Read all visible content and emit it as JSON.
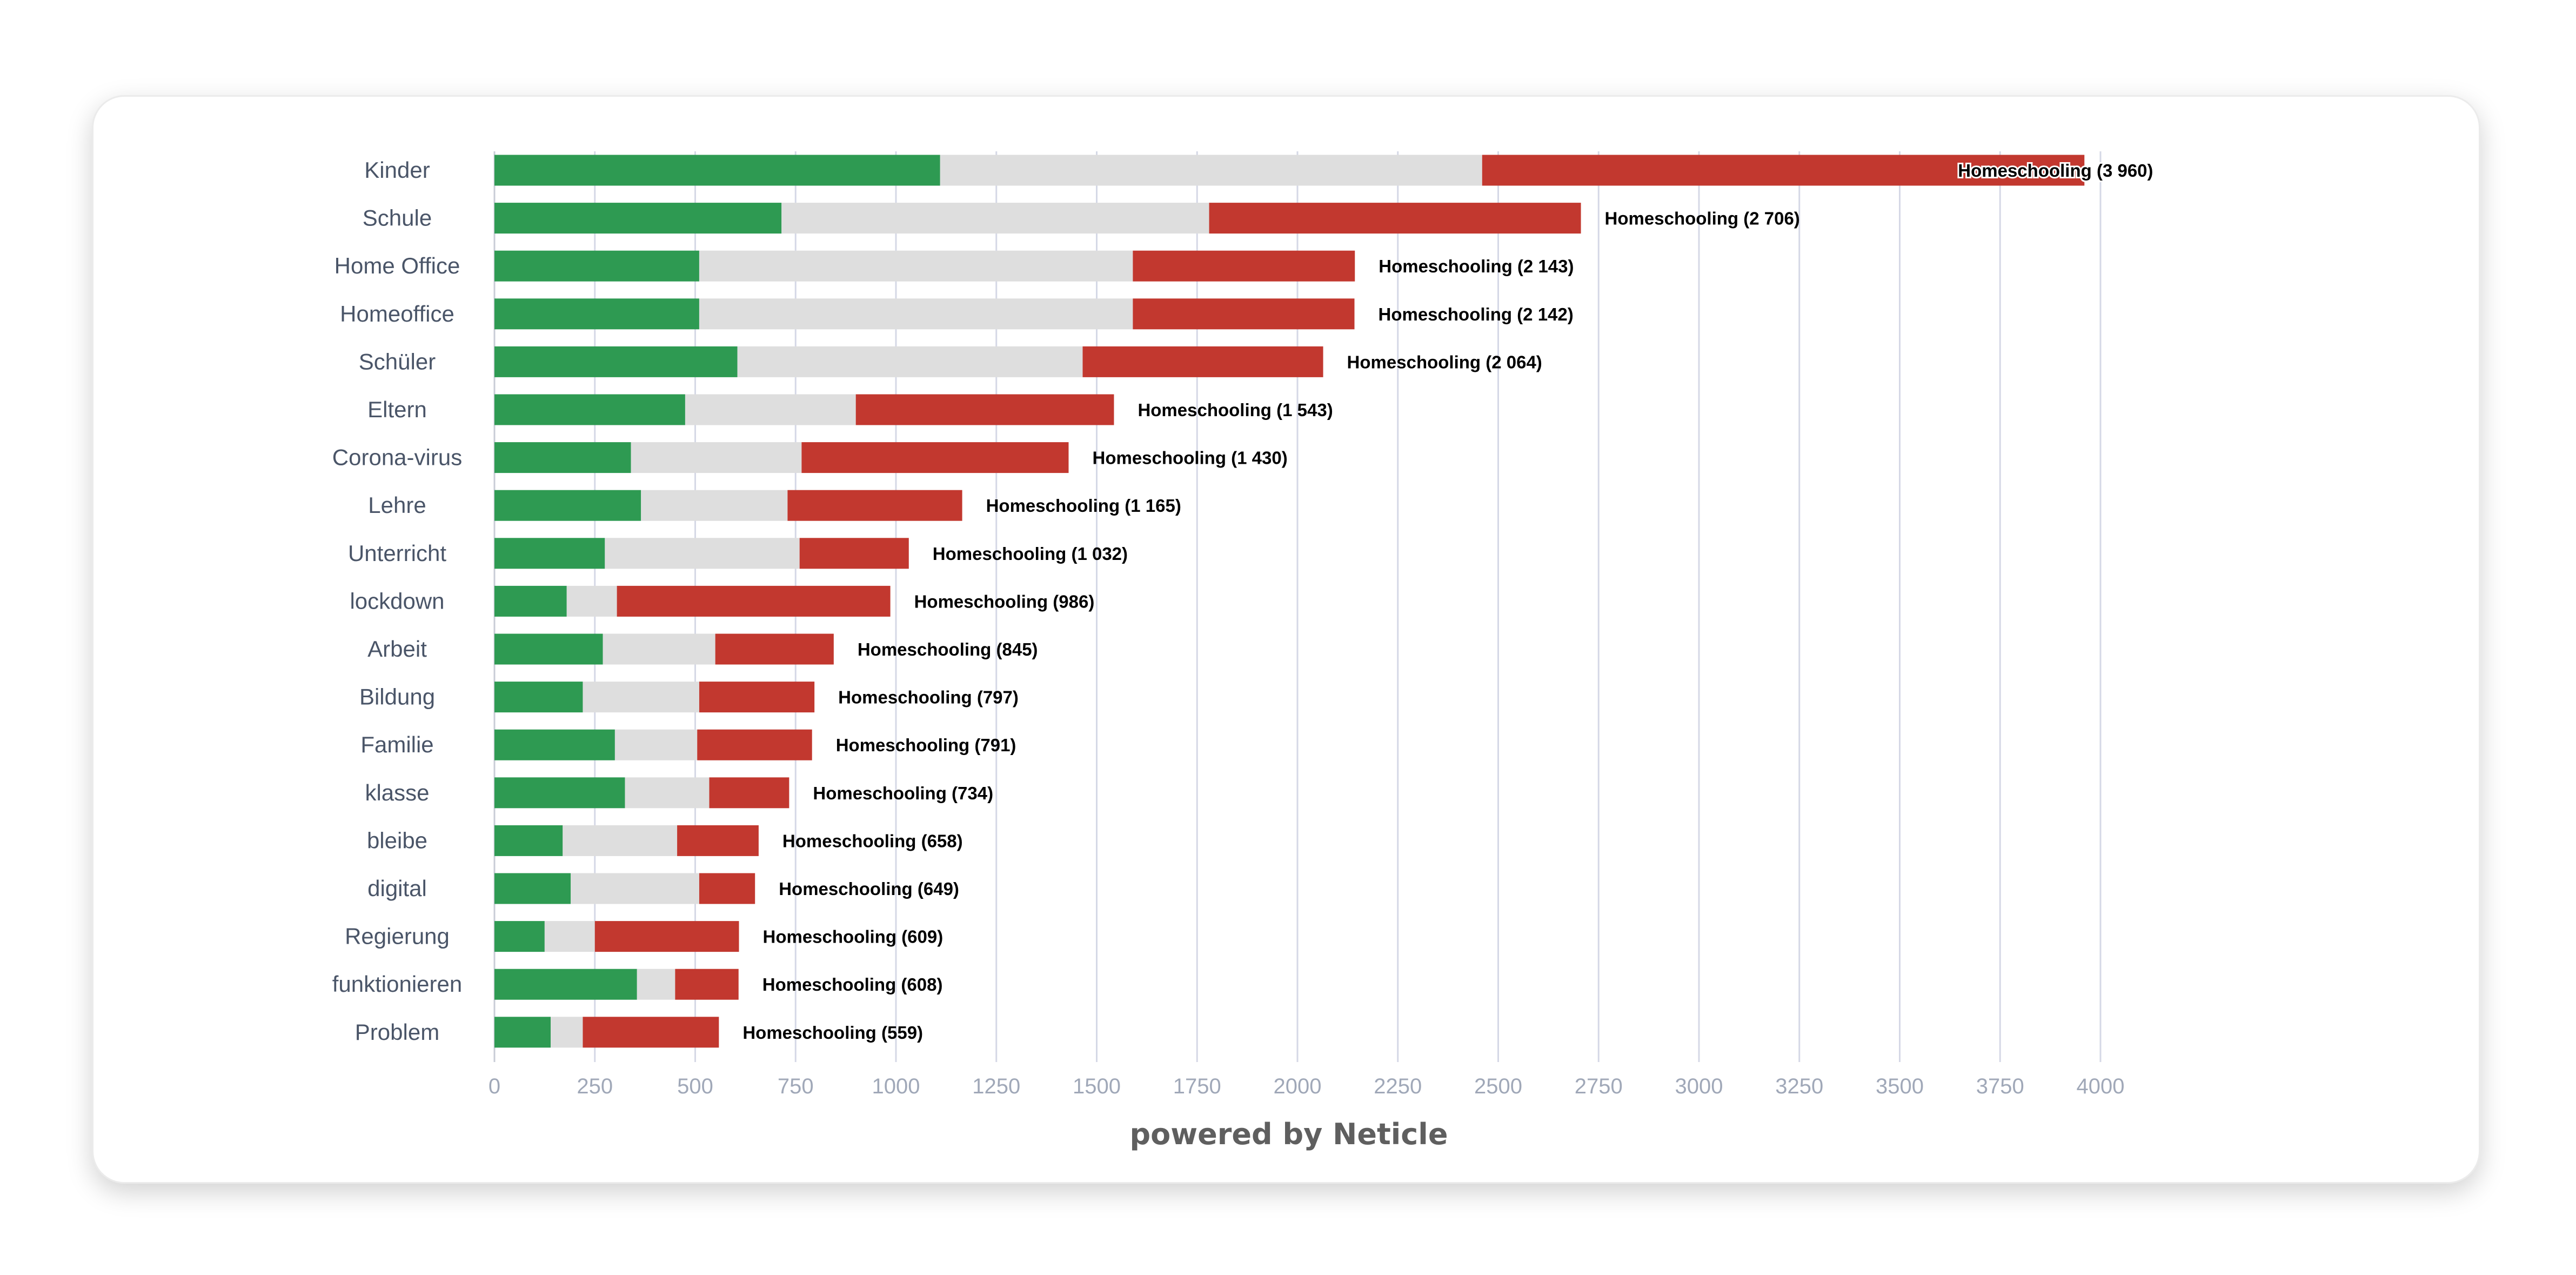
{
  "chart_data": {
    "type": "bar",
    "orientation": "horizontal",
    "stacked": true,
    "categories": [
      "Kinder",
      "Schule",
      "Home Office",
      "Homeoffice",
      "Schüler",
      "Eltern",
      "Corona-virus",
      "Lehre",
      "Unterricht",
      "lockdown",
      "Arbeit",
      "Bildung",
      "Familie",
      "klasse",
      "bleibe",
      "digital",
      "Regierung",
      "funktionieren",
      "Problem"
    ],
    "series": [
      {
        "color": "#2e9a52",
        "values": [
          1110,
          715,
          510,
          510,
          605,
          475,
          340,
          365,
          275,
          180,
          270,
          220,
          300,
          325,
          170,
          190,
          125,
          355,
          140
        ]
      },
      {
        "color": "#dedede",
        "values": [
          1350,
          1065,
          1080,
          1080,
          860,
          425,
          425,
          365,
          485,
          125,
          280,
          290,
          205,
          210,
          285,
          320,
          125,
          95,
          80
        ]
      },
      {
        "color": "#c2382f",
        "values": [
          1500,
          926,
          553,
          552,
          599,
          643,
          665,
          435,
          272,
          681,
          295,
          287,
          286,
          199,
          203,
          139,
          359,
          158,
          339
        ]
      }
    ],
    "data_labels": [
      "Homeschooling (3 960)",
      "Homeschooling (2 706)",
      "Homeschooling (2 143)",
      "Homeschooling (2 142)",
      "Homeschooling (2 064)",
      "Homeschooling (1 543)",
      "Homeschooling (1 430)",
      "Homeschooling (1 165)",
      "Homeschooling (1 032)",
      "Homeschooling (986)",
      "Homeschooling (845)",
      "Homeschooling (797)",
      "Homeschooling (791)",
      "Homeschooling (734)",
      "Homeschooling (658)",
      "Homeschooling (649)",
      "Homeschooling (609)",
      "Homeschooling (608)",
      "Homeschooling (559)"
    ],
    "xlim": [
      0,
      4000
    ],
    "x_ticks": [
      0,
      250,
      500,
      750,
      1000,
      1250,
      1500,
      1750,
      2000,
      2250,
      2500,
      2750,
      3000,
      3250,
      3500,
      3750,
      4000
    ],
    "grid": "vertical",
    "footer": "powered by Neticle"
  }
}
